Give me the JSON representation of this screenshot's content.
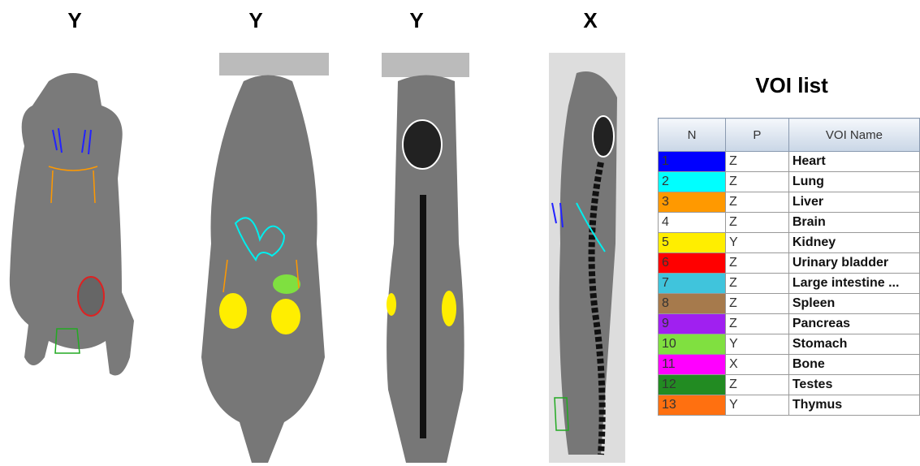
{
  "panels": [
    {
      "label": "Y"
    },
    {
      "label": "Y"
    },
    {
      "label": "Y"
    },
    {
      "label": "X"
    }
  ],
  "voi_list": {
    "title": "VOI list",
    "columns": [
      "N",
      "P",
      "VOI Name"
    ],
    "rows": [
      {
        "n": 1,
        "p": "Z",
        "name": "Heart",
        "color": "#0000ff"
      },
      {
        "n": 2,
        "p": "Z",
        "name": "Lung",
        "color": "#00ffff"
      },
      {
        "n": 3,
        "p": "Z",
        "name": "Liver",
        "color": "#ff9900"
      },
      {
        "n": 4,
        "p": "Z",
        "name": "Brain",
        "color": "#ffffff"
      },
      {
        "n": 5,
        "p": "Y",
        "name": "Kidney",
        "color": "#ffee00"
      },
      {
        "n": 6,
        "p": "Z",
        "name": "Urinary bladder",
        "color": "#ff0000"
      },
      {
        "n": 7,
        "p": "Z",
        "name": "Large intestine ...",
        "color": "#40c4dc"
      },
      {
        "n": 8,
        "p": "Z",
        "name": "Spleen",
        "color": "#a67a4c"
      },
      {
        "n": 9,
        "p": "Z",
        "name": "Pancreas",
        "color": "#a020f0"
      },
      {
        "n": 10,
        "p": "Y",
        "name": "Stomach",
        "color": "#80e040"
      },
      {
        "n": 11,
        "p": "X",
        "name": "Bone",
        "color": "#ff00ff"
      },
      {
        "n": 12,
        "p": "Z",
        "name": "Testes",
        "color": "#228b22"
      },
      {
        "n": 13,
        "p": "Y",
        "name": "Thymus",
        "color": "#ff7010"
      }
    ]
  }
}
